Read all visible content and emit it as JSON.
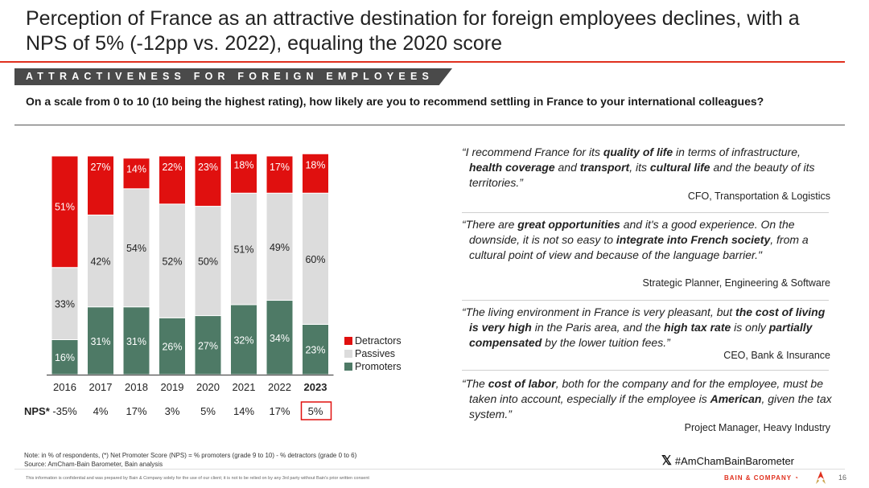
{
  "title": "Perception of France as an attractive destination for foreign employees declines, with a NPS of 5% (-12pp vs. 2022), equaling the 2020 score",
  "section_label": "ATTRACTIVENESS FOR FOREIGN EMPLOYEES",
  "question": "On a scale from 0 to 10 (10 being the highest rating), how likely are you to recommend settling in France to your international colleagues?",
  "colors": {
    "detractors": "#e0100f",
    "passives": "#dcdcdc",
    "promoters": "#4e7a66",
    "accent": "#e0301e"
  },
  "chart_data": {
    "type": "bar",
    "stacked": true,
    "categories": [
      "2016",
      "2017",
      "2018",
      "2019",
      "2020",
      "2021",
      "2022",
      "2023"
    ],
    "series": [
      {
        "name": "Promoters",
        "values": [
          16,
          31,
          31,
          26,
          27,
          32,
          34,
          23
        ]
      },
      {
        "name": "Passives",
        "values": [
          33,
          42,
          54,
          52,
          50,
          51,
          49,
          60
        ]
      },
      {
        "name": "Detractors",
        "values": [
          51,
          27,
          14,
          22,
          23,
          18,
          17,
          18
        ]
      }
    ],
    "ylim": [
      0,
      100
    ],
    "legend_position": "right",
    "nps_label": "NPS*",
    "nps": [
      "-35%",
      "4%",
      "17%",
      "3%",
      "5%",
      "14%",
      "17%",
      "5%"
    ],
    "highlight_category": "2023"
  },
  "quotes": [
    {
      "html": "“I recommend France for its <b>quality of life</b> in terms of infrastructure, <b>health coverage</b> and <b>transport</b>, its <b>cultural life</b> and the beauty of its territories.”",
      "author": "CFO, Transportation & Logistics"
    },
    {
      "html": "“There are <b>great opportunities</b> and it's a good experience. On the downside, it is not so easy to <b>integrate into French society</b>, from a cultural point of view and because of the language barrier.\"",
      "author": "Strategic Planner, Engineering & Software"
    },
    {
      "html": "“The living environment in France is very pleasant, but <b>the cost of living is very high</b> in the Paris area, and the <b>high tax rate</b> is only <b>partially compensated</b> by the lower tuition fees.”",
      "author": "CEO, Bank & Insurance"
    },
    {
      "html": "“The <b>cost of labor</b>, both for the company and for the employee, must be taken into account, especially if the employee is <b>American</b>, given the tax system.”",
      "author": "Project Manager, Heavy Industry"
    }
  ],
  "note": "Note: in % of respondents, (*) Net Promoter Score (NPS) = % promoters (grade 9 to 10) - % detractors (grade 0 to 6)",
  "source": "Source: AmCham-Bain Barometer, Bain analysis",
  "disclaimer": "This information is confidential and was prepared by Bain & Company solely for the use of our client; it is not to be relied on by any 3rd party without Bain's prior written consent",
  "hashtag": "#AmChamBainBarometer",
  "brand": "BAIN & COMPANY",
  "page_number": "16"
}
